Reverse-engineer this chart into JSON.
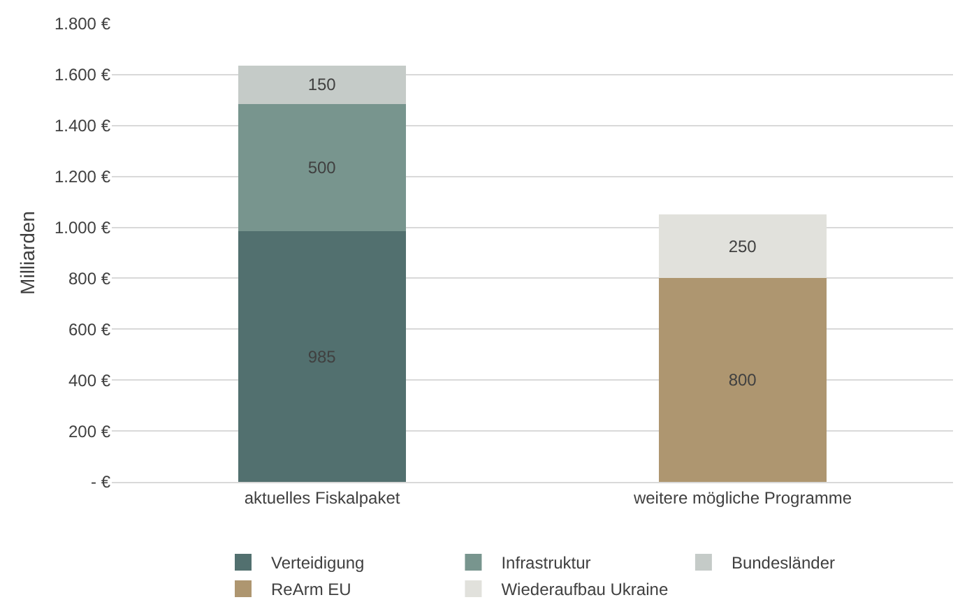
{
  "chart_data": {
    "type": "bar",
    "stacked": true,
    "ylabel": "Milliarden",
    "categories": [
      "aktuelles Fiskalpaket",
      "weitere mögliche Programme"
    ],
    "series": [
      {
        "name": "Verteidigung",
        "color": "#52706f",
        "values": [
          985,
          null
        ]
      },
      {
        "name": "Infrastruktur",
        "color": "#78958e",
        "values": [
          500,
          null
        ]
      },
      {
        "name": "Bundesländer",
        "color": "#c5cbc8",
        "values": [
          150,
          null
        ]
      },
      {
        "name": "ReArm EU",
        "color": "#ae9670",
        "values": [
          null,
          800
        ]
      },
      {
        "name": "Wiederaufbau Ukraine",
        "color": "#e1e1dc",
        "values": [
          null,
          250
        ]
      }
    ],
    "ylim": [
      0,
      1800
    ],
    "yticks": [
      {
        "value": 0,
        "label": "- €"
      },
      {
        "value": 200,
        "label": "200 €"
      },
      {
        "value": 400,
        "label": "400 €"
      },
      {
        "value": 600,
        "label": "600 €"
      },
      {
        "value": 800,
        "label": "800 €"
      },
      {
        "value": 1000,
        "label": "1.000 €"
      },
      {
        "value": 1200,
        "label": "1.200 €"
      },
      {
        "value": 1400,
        "label": "1.400 €"
      },
      {
        "value": 1600,
        "label": "1.600 €"
      },
      {
        "value": 1800,
        "label": "1.800 €"
      }
    ],
    "grid": "y",
    "legend": "bottom",
    "data_labels": true
  }
}
